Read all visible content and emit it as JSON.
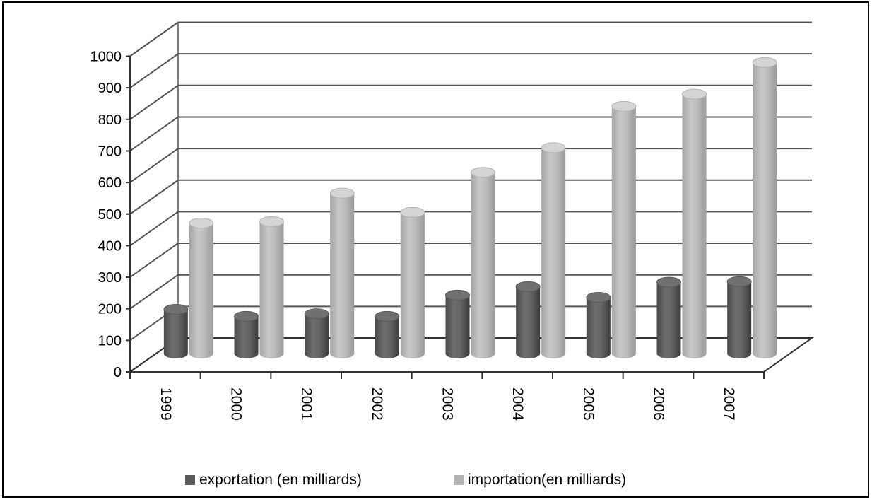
{
  "chart_data": {
    "type": "bar",
    "categories": [
      "1999",
      "2000",
      "2001",
      "2002",
      "2003",
      "2004",
      "2005",
      "2006",
      "2007"
    ],
    "series": [
      {
        "name": "exportation (en milliards)",
        "values": [
          140,
          118,
          126,
          118,
          185,
          212,
          178,
          226,
          228
        ]
      },
      {
        "name": "importation(en milliards)",
        "values": [
          413,
          418,
          508,
          447,
          574,
          652,
          783,
          822,
          922
        ]
      }
    ],
    "ylim": [
      0,
      1000
    ],
    "yticks": [
      "0",
      "100",
      "200",
      "300",
      "400",
      "500",
      "600",
      "700",
      "800",
      "900",
      "1000"
    ],
    "grid": true,
    "legend": "bottom",
    "style": "3d-cylinder",
    "colors": {
      "exportation": "#5a5a5a",
      "importation": "#b3b3b3"
    }
  }
}
